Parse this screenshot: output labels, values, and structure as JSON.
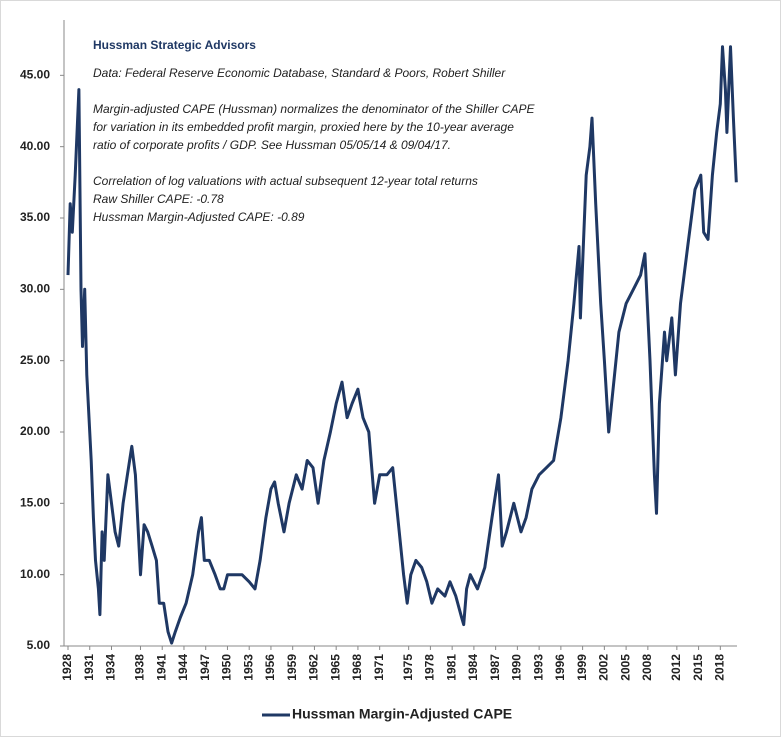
{
  "chart_data": {
    "type": "line",
    "title": "Hussman Strategic Advisors",
    "annotations": [
      "Data: Federal Reserve Economic Database, Standard & Poors, Robert Shiller",
      "Margin-adjusted CAPE (Hussman) normalizes the denominator of the Shiller CAPE",
      "for variation in its embedded profit margin, proxied here by the 10-year average",
      "ratio of corporate profits / GDP. See Hussman 05/05/14  & 09/04/17.",
      "Correlation of log valuations with actual subsequent 12-year total returns",
      "Raw Shiller CAPE: -0.78",
      "Hussman Margin-Adjusted CAPE: -0.89"
    ],
    "x": [
      1928.0,
      1928.3,
      1928.6,
      1929.0,
      1929.5,
      1929.8,
      1930.0,
      1930.3,
      1930.6,
      1930.9,
      1931.2,
      1931.5,
      1931.8,
      1932.2,
      1932.4,
      1932.7,
      1933.0,
      1933.5,
      1934.0,
      1934.5,
      1935.0,
      1935.6,
      1936.2,
      1936.8,
      1937.3,
      1938.0,
      1938.5,
      1939.0,
      1939.6,
      1940.2,
      1940.6,
      1941.2,
      1941.8,
      1942.3,
      1942.8,
      1943.5,
      1944.3,
      1945.2,
      1946.0,
      1946.4,
      1946.8,
      1947.5,
      1948.3,
      1949.0,
      1949.5,
      1950.0,
      1951.0,
      1952.0,
      1953.0,
      1953.8,
      1954.5,
      1955.3,
      1956.0,
      1956.5,
      1957.0,
      1957.8,
      1958.5,
      1959.5,
      1960.3,
      1961.0,
      1961.8,
      1962.5,
      1963.3,
      1964.2,
      1965.0,
      1965.8,
      1966.5,
      1967.2,
      1968.0,
      1968.7,
      1969.5,
      1970.3,
      1971.0,
      1972.0,
      1972.8,
      1973.5,
      1974.3,
      1974.8,
      1975.3,
      1976.0,
      1976.8,
      1977.5,
      1978.2,
      1979.0,
      1980.0,
      1980.7,
      1981.5,
      1982.3,
      1982.6,
      1983.0,
      1983.5,
      1984.5,
      1985.5,
      1986.5,
      1987.4,
      1987.9,
      1988.5,
      1989.5,
      1990.5,
      1991.2,
      1992.0,
      1993.0,
      1994.0,
      1995.0,
      1996.0,
      1997.0,
      1997.8,
      1998.5,
      1998.7,
      1999.5,
      2000.0,
      2000.3,
      2000.8,
      2001.5,
      2002.0,
      2002.6,
      2003.0,
      2004.0,
      2005.0,
      2006.0,
      2007.0,
      2007.6,
      2008.3,
      2008.9,
      2009.2,
      2009.6,
      2010.3,
      2010.6,
      2011.3,
      2011.8,
      2012.5,
      2013.5,
      2014.5,
      2015.3,
      2015.7,
      2016.3,
      2016.9,
      2017.5,
      2018.0,
      2018.3,
      2018.7,
      2018.9,
      2019.4,
      2019.8,
      2020.2
    ],
    "series": [
      {
        "name": "Hussman Margin-Adjusted CAPE",
        "color": "#1f3864",
        "values": [
          31,
          36,
          34,
          38,
          44,
          30,
          26,
          30,
          24,
          21,
          18,
          14,
          11,
          9,
          7.2,
          13,
          11,
          17,
          15,
          13,
          12,
          15,
          17,
          19,
          17,
          10,
          13.5,
          13,
          12,
          11,
          8,
          8,
          6,
          5.2,
          6,
          7,
          8,
          10,
          13,
          14,
          11,
          11,
          10,
          9,
          9,
          10,
          10,
          10,
          9.5,
          9,
          11,
          14,
          16,
          16.5,
          15,
          13,
          15,
          17,
          16,
          18,
          17.5,
          15,
          18,
          20,
          22,
          23.5,
          21,
          22,
          23,
          21,
          20,
          15,
          17,
          17,
          17.5,
          14,
          10,
          8,
          10,
          11,
          10.5,
          9.5,
          8,
          9,
          8.5,
          9.5,
          8.5,
          7,
          6.5,
          9,
          10,
          9,
          10.5,
          14,
          17,
          12,
          13,
          15,
          13,
          14,
          16,
          17,
          17.5,
          18,
          21,
          25,
          29,
          33,
          28,
          38,
          40,
          42,
          36,
          29,
          25,
          20,
          22,
          27,
          29,
          30,
          31,
          32.5,
          25,
          17,
          14.3,
          22,
          27,
          25,
          28,
          24,
          29,
          33,
          37,
          38,
          34,
          33.5,
          38,
          41,
          43,
          47,
          44,
          41,
          47,
          42,
          37.5
        ]
      }
    ],
    "xlim": [
      1928,
      2020.3
    ],
    "xticks": [
      1928,
      1931,
      1934,
      1938,
      1941,
      1944,
      1947,
      1950,
      1953,
      1956,
      1959,
      1962,
      1965,
      1968,
      1971,
      1975,
      1978,
      1981,
      1984,
      1987,
      1990,
      1993,
      1996,
      1999,
      2002,
      2005,
      2008,
      2012,
      2015,
      2018
    ],
    "ylim": [
      5,
      50
    ],
    "yticks": [
      {
        "value": 5,
        "label": "5.00"
      },
      {
        "value": 10,
        "label": "10.00"
      },
      {
        "value": 15,
        "label": "15.00"
      },
      {
        "value": 20,
        "label": "20.00"
      },
      {
        "value": 25,
        "label": "25.00"
      },
      {
        "value": 30,
        "label": "30.00"
      },
      {
        "value": 35,
        "label": "35.00"
      },
      {
        "value": 40,
        "label": "40.00"
      },
      {
        "value": 45,
        "label": "45.00"
      }
    ],
    "legend": "bottom"
  }
}
